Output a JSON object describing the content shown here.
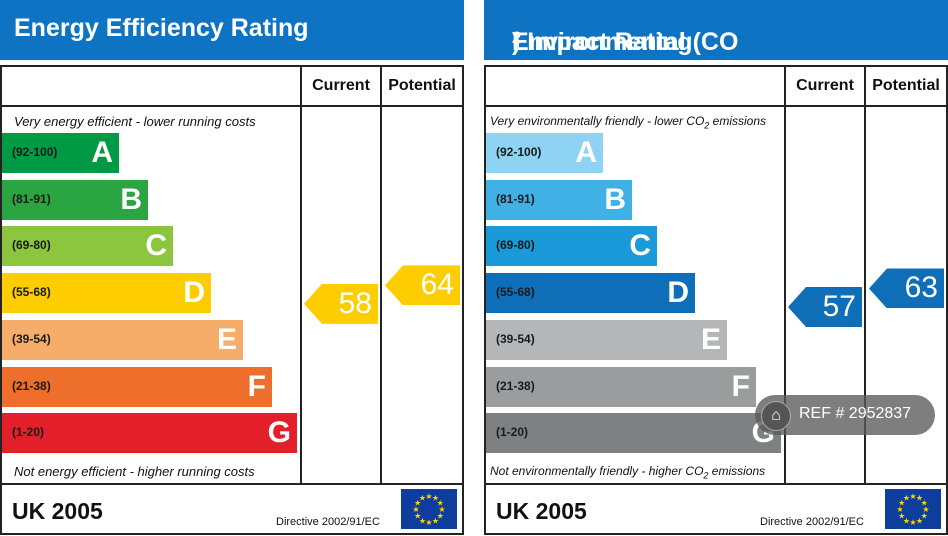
{
  "chart_data": [
    {
      "type": "bar",
      "title": "Energy Efficiency Rating",
      "columns": [
        "Current",
        "Potential"
      ],
      "top_caption": "Very energy efficient - lower running costs",
      "bottom_caption": "Not energy efficient - higher running costs",
      "bands": [
        {
          "range": "(92-100)",
          "letter": "A",
          "color": "#009a44"
        },
        {
          "range": "(81-91)",
          "letter": "B",
          "color": "#2ba442"
        },
        {
          "range": "(69-80)",
          "letter": "C",
          "color": "#8cc63e"
        },
        {
          "range": "(55-68)",
          "letter": "D",
          "color": "#fdcd00"
        },
        {
          "range": "(39-54)",
          "letter": "E",
          "color": "#f7ad6a"
        },
        {
          "range": "(21-38)",
          "letter": "F",
          "color": "#ee6e2b"
        },
        {
          "range": "(1-20)",
          "letter": "G",
          "color": "#e3202a"
        }
      ],
      "current": 58,
      "potential": 64,
      "arrow_color": "#fdcd00",
      "footer": "UK 2005",
      "directive": "Directive 2002/91/EC"
    },
    {
      "type": "bar",
      "title_parts": [
        "Environmental (CO",
        "2",
        ") Impact Rating"
      ],
      "columns": [
        "Current",
        "Potential"
      ],
      "top_caption_parts": [
        "Very environmentally friendly - lower CO",
        "2",
        " emissions"
      ],
      "bottom_caption_parts": [
        "Not environmentally friendly - higher CO",
        "2",
        " emissions"
      ],
      "bands": [
        {
          "range": "(92-100)",
          "letter": "A",
          "color": "#8fd3f4"
        },
        {
          "range": "(81-91)",
          "letter": "B",
          "color": "#3fb1e5"
        },
        {
          "range": "(69-80)",
          "letter": "C",
          "color": "#1a9ad8"
        },
        {
          "range": "(55-68)",
          "letter": "D",
          "color": "#0e6fb8"
        },
        {
          "range": "(39-54)",
          "letter": "E",
          "color": "#b5b6b8"
        },
        {
          "range": "(21-38)",
          "letter": "F",
          "color": "#9b9c9e"
        },
        {
          "range": "(1-20)",
          "letter": "G",
          "color": "#7f8082"
        }
      ],
      "current": 57,
      "potential": 63,
      "arrow_color": "#0e6fb8",
      "footer": "UK 2005",
      "directive": "Directive 2002/91/EC"
    }
  ],
  "watermark": {
    "icon": "home-icon",
    "text": "REF # 2952837"
  }
}
